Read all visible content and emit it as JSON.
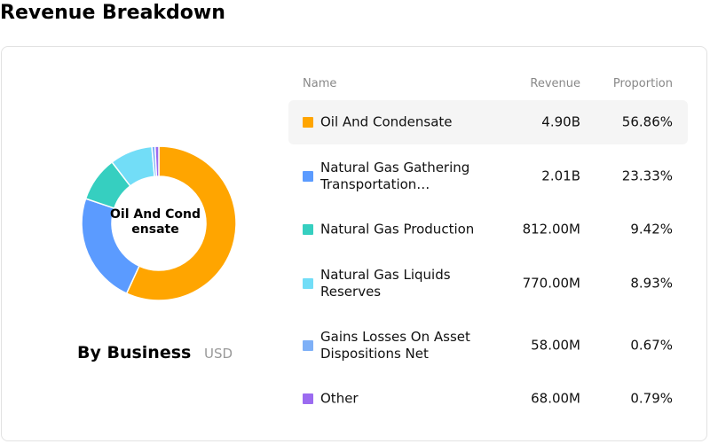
{
  "title": "Revenue Breakdown",
  "chart_data": {
    "type": "pie",
    "donut": true,
    "subtitle": "By Business",
    "unit": "USD",
    "categories": [
      "Oil And Condensate",
      "Natural Gas Gathering Transportation…",
      "Natural Gas Production",
      "Natural Gas Liquids Reserves",
      "Gains Losses On Asset Dispositions Net",
      "Other"
    ],
    "values": [
      56.86,
      23.33,
      9.42,
      8.93,
      0.67,
      0.79
    ],
    "value_labels": [
      "56.86%",
      "23.33%",
      "9.42%",
      "8.93%",
      "0.67%",
      "0.79%"
    ],
    "colors": [
      "#ffa500",
      "#5b9bff",
      "#36cfc0",
      "#72ddf7",
      "#7eb0f7",
      "#9b6bf0"
    ]
  },
  "table": {
    "columns": [
      "Name",
      "Revenue",
      "Proportion"
    ],
    "revenue": [
      "4.90B",
      "2.01B",
      "812.00M",
      "770.00M",
      "58.00M",
      "68.00M"
    ]
  }
}
